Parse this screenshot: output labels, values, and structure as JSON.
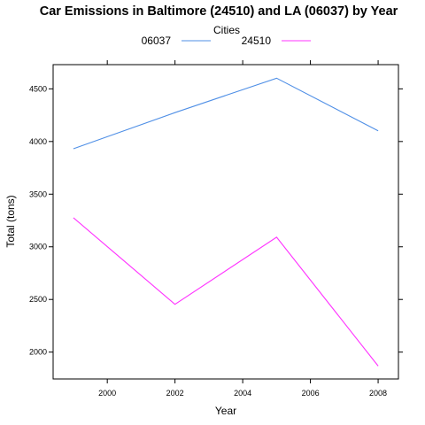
{
  "chart_data": {
    "type": "line",
    "title": "Car Emissions in Baltimore (24510) and LA (06037) by Year",
    "xlabel": "Year",
    "ylabel": "Total (tons)",
    "legend_title": "Cities",
    "legend_position": "top",
    "grid": false,
    "xlim": [
      1998.4,
      2008.6
    ],
    "ylim": [
      1745,
      4730
    ],
    "x_ticks": [
      2000,
      2002,
      2004,
      2006,
      2008
    ],
    "x_tick_labels": [
      "2000",
      "2002",
      "2004",
      "2006",
      "2008"
    ],
    "y_ticks": [
      2000,
      2500,
      3000,
      3500,
      4000,
      4500
    ],
    "y_tick_labels": [
      "2000",
      "2500",
      "3000",
      "3500",
      "4000",
      "4500"
    ],
    "x": [
      1999,
      2002,
      2005,
      2008
    ],
    "series": [
      {
        "name": "06037",
        "color": "#4f8fe6",
        "values": [
          3931,
          4274,
          4601,
          4101
        ]
      },
      {
        "name": "24510",
        "color": "#ff33ff",
        "values": [
          3276,
          2454,
          3091,
          1868
        ]
      }
    ]
  }
}
